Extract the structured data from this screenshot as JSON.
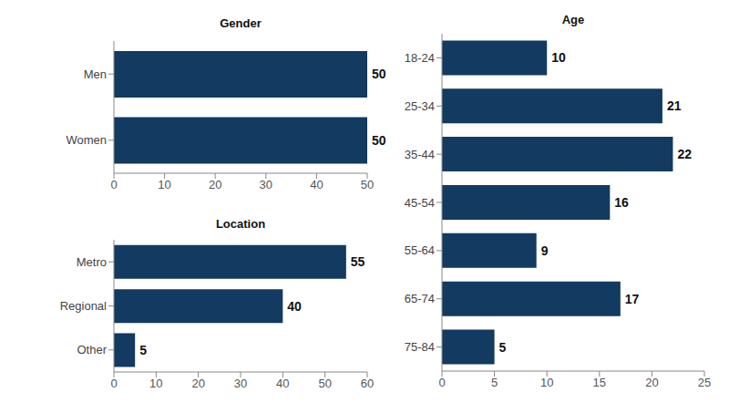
{
  "chart_data": [
    {
      "type": "bar",
      "title": "Gender",
      "orientation": "horizontal",
      "categories": [
        "Men",
        "Women"
      ],
      "values": [
        50,
        50
      ],
      "color": "#133a60",
      "xlim": [
        0,
        50
      ],
      "xticks": [
        0,
        10,
        20,
        30,
        40,
        50
      ],
      "data_labels": true,
      "grid": false
    },
    {
      "type": "bar",
      "title": "Location",
      "orientation": "horizontal",
      "categories": [
        "Metro",
        "Regional",
        "Other"
      ],
      "values": [
        55,
        40,
        5
      ],
      "color": "#133a60",
      "xlim": [
        0,
        60
      ],
      "xticks": [
        0,
        10,
        20,
        30,
        40,
        50,
        60
      ],
      "data_labels": true,
      "grid": false
    },
    {
      "type": "bar",
      "title": "Age",
      "orientation": "horizontal",
      "categories": [
        "18-24",
        "25-34",
        "35-44",
        "45-54",
        "55-64",
        "65-74",
        "75-84"
      ],
      "values": [
        10,
        21,
        22,
        16,
        9,
        17,
        5
      ],
      "color": "#133a60",
      "xlim": [
        0,
        25
      ],
      "xticks": [
        0,
        5,
        10,
        15,
        20,
        25
      ],
      "data_labels": true,
      "grid": false
    }
  ]
}
